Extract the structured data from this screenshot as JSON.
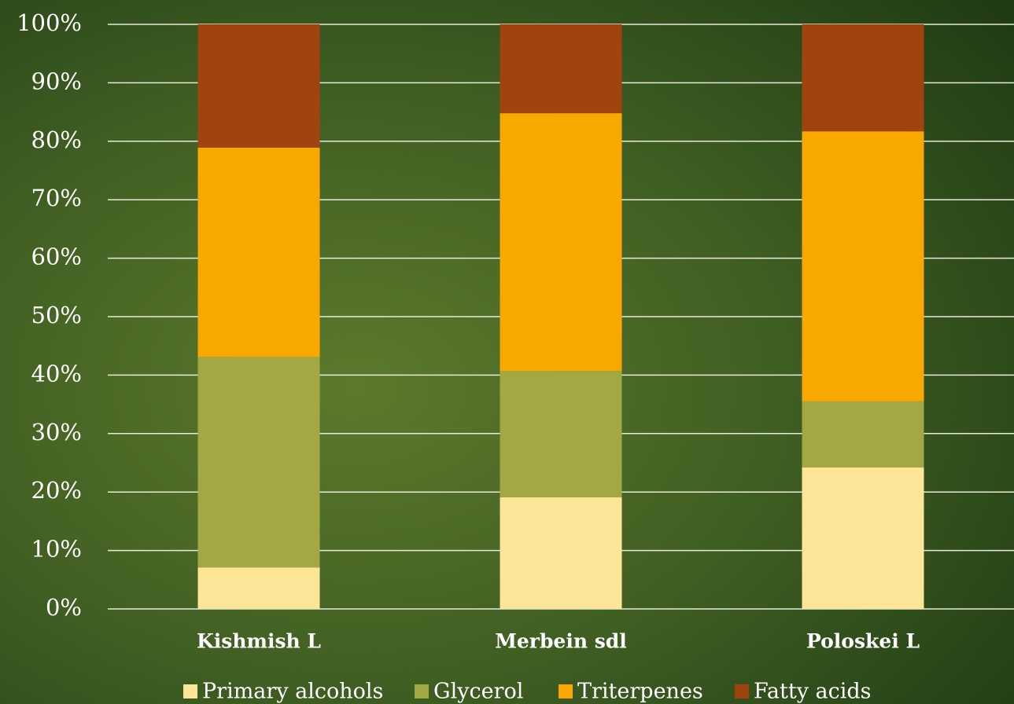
{
  "chart_data": {
    "type": "bar",
    "stacked": true,
    "categories": [
      "Kishmish L",
      "Merbein sdl",
      "Poloskei L"
    ],
    "series": [
      {
        "name": "Primary alcohols",
        "color": "#fde598",
        "values": [
          7.1,
          19.1,
          24.2
        ]
      },
      {
        "name": "Glycerol",
        "color": "#a3a844",
        "values": [
          36.0,
          21.6,
          11.3
        ]
      },
      {
        "name": "Triterpenes",
        "color": "#f8a800",
        "values": [
          35.8,
          44.1,
          46.2
        ]
      },
      {
        "name": "Fatty acids",
        "color": "#a0430f",
        "values": [
          21.1,
          15.2,
          18.3
        ]
      }
    ],
    "ylim": [
      0,
      100
    ],
    "yticks": [
      {
        "value": 0,
        "label": "0%"
      },
      {
        "value": 10,
        "label": "10%"
      },
      {
        "value": 20,
        "label": "20%"
      },
      {
        "value": 30,
        "label": "30%"
      },
      {
        "value": 40,
        "label": "40%"
      },
      {
        "value": 50,
        "label": "50%"
      },
      {
        "value": 60,
        "label": "60%"
      },
      {
        "value": 70,
        "label": "70%"
      },
      {
        "value": 80,
        "label": "80%"
      },
      {
        "value": 90,
        "label": "90%"
      },
      {
        "value": 100,
        "label": "100%"
      }
    ],
    "grid": true,
    "legend": "bottom"
  }
}
